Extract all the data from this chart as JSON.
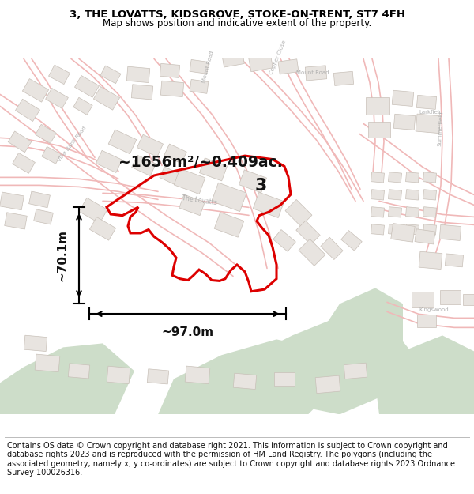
{
  "title_line1": "3, THE LOVATTS, KIDSGROVE, STOKE-ON-TRENT, ST7 4FH",
  "title_line2": "Map shows position and indicative extent of the property.",
  "footer_text": "Contains OS data © Crown copyright and database right 2021. This information is subject to Crown copyright and database rights 2023 and is reproduced with the permission of HM Land Registry. The polygons (including the associated geometry, namely x, y co-ordinates) are subject to Crown copyright and database rights 2023 Ordnance Survey 100026316.",
  "area_label": "~1656m²/~0.409ac.",
  "width_label": "~97.0m",
  "height_label": "~70.1m",
  "plot_number": "3",
  "map_bg": "#f9f7f5",
  "road_outline_color": "#f0b8b8",
  "building_face_color": "#e8e4e0",
  "building_edge_color": "#c8c0b8",
  "green_color": "#cdddc9",
  "plot_color": "#dd0000",
  "title_fontsize": 9.5,
  "subtitle_fontsize": 8.5,
  "footer_fontsize": 7.0,
  "label_fontsize": 7.0,
  "road_label_color": "#aaaaaa"
}
